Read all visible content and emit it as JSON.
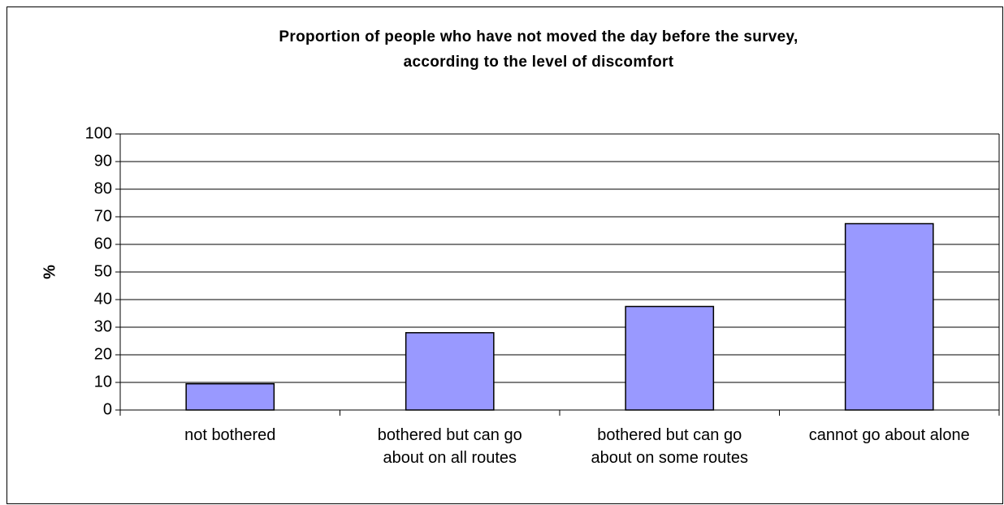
{
  "chart_data": {
    "type": "bar",
    "title": "Proportion of people who have not moved the day before the survey,\naccording to the level of discomfort",
    "y_label": "%",
    "categories": [
      "not bothered",
      "bothered but can go\nabout on all routes",
      "bothered but can go\nabout on some routes",
      "cannot go about alone"
    ],
    "values": [
      9.5,
      28,
      37.5,
      67.5
    ],
    "color": "#9999ff",
    "ylim": [
      0,
      100
    ],
    "yticks": [
      0,
      10,
      20,
      30,
      40,
      50,
      60,
      70,
      80,
      90,
      100
    ],
    "grid": true
  }
}
